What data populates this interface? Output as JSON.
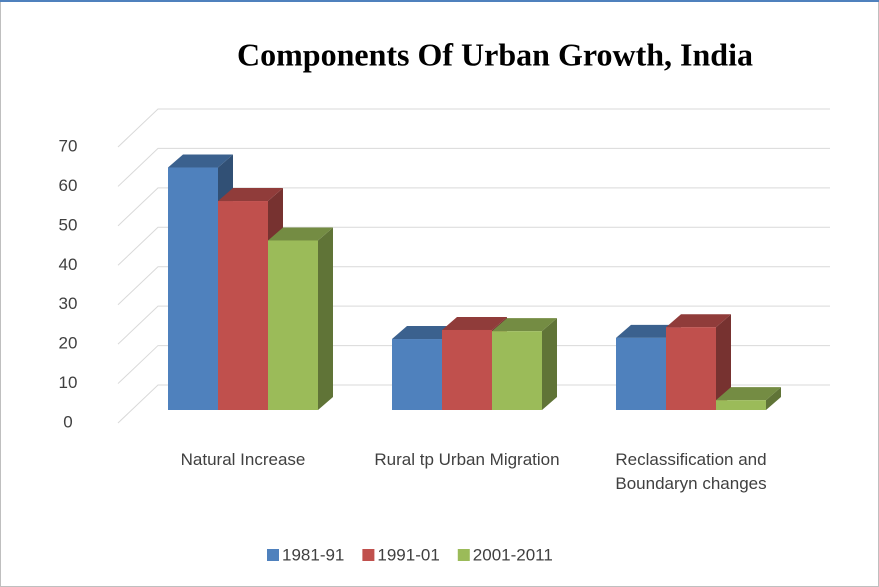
{
  "chart_data": {
    "type": "bar3d",
    "title": "Components Of Urban Growth, India",
    "categories": [
      "Natural Increase",
      "Rural tp Urban Migration",
      "Reclassification and Boundaryn changes"
    ],
    "series": [
      {
        "name": "1981-91",
        "color": "#4f81bd",
        "values": [
          61.5,
          18,
          18.3
        ]
      },
      {
        "name": "1991-01",
        "color": "#c0504d",
        "values": [
          53,
          20.3,
          21
        ]
      },
      {
        "name": "2001-2011",
        "color": "#9bbb59",
        "values": [
          43,
          20,
          2.5
        ]
      }
    ],
    "ylim": [
      0,
      70
    ],
    "yticks": [
      0,
      10,
      20,
      30,
      40,
      50,
      60,
      70
    ],
    "grid": true,
    "legend": "bottom"
  }
}
